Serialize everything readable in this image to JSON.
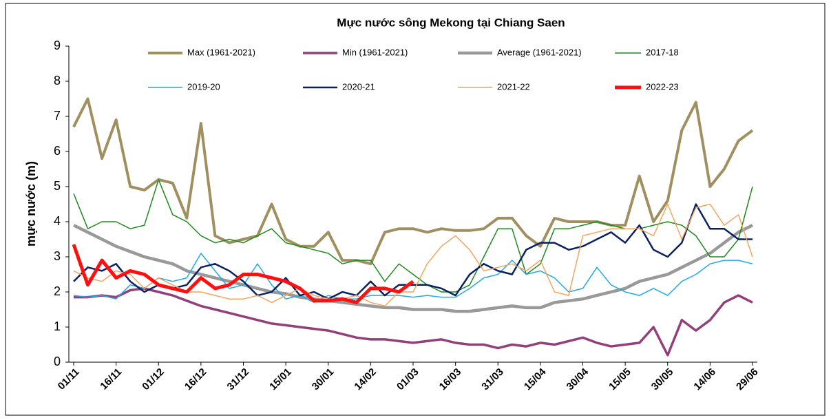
{
  "chart_data": {
    "type": "line",
    "title": "Mực nước sông Mekong tại Chiang Saen",
    "y_label": "mực nước (m)",
    "categories": [
      "01/11",
      null,
      null,
      "16/11",
      null,
      null,
      "01/12",
      null,
      null,
      "16/12",
      null,
      null,
      "31/12",
      null,
      null,
      "15/01",
      null,
      null,
      "30/01",
      null,
      null,
      "14/02",
      null,
      null,
      "01/03",
      null,
      null,
      "16/03",
      null,
      null,
      "31/03",
      null,
      null,
      "15/04",
      null,
      null,
      "30/04",
      null,
      null,
      "15/05",
      null,
      null,
      "30/05",
      null,
      null,
      "14/06",
      null,
      null,
      "29/06"
    ],
    "ylim": [
      0,
      9
    ],
    "yticks": [
      0,
      1,
      2,
      3,
      4,
      5,
      6,
      7,
      8,
      9
    ],
    "series": [
      {
        "name": "Max (1961-2021)",
        "color": "#a09060",
        "values": [
          6.7,
          7.5,
          5.8,
          6.9,
          5.0,
          4.9,
          5.2,
          5.1,
          4.1,
          6.8,
          3.6,
          3.4,
          3.5,
          3.6,
          4.5,
          3.5,
          3.3,
          3.3,
          3.7,
          2.9,
          2.9,
          2.8,
          3.7,
          3.8,
          3.8,
          3.7,
          3.8,
          3.75,
          3.75,
          3.8,
          4.1,
          4.1,
          3.6,
          3.3,
          4.1,
          4.0,
          4.0,
          4.0,
          3.9,
          3.9,
          5.3,
          4.0,
          4.6,
          6.6,
          7.4,
          5.0,
          5.5,
          6.3,
          6.6
        ]
      },
      {
        "name": "Min (1961-2021)",
        "color": "#933f7a",
        "values": [
          1.85,
          1.85,
          1.9,
          1.85,
          2.05,
          2.1,
          2.0,
          1.9,
          1.75,
          1.6,
          1.5,
          1.4,
          1.3,
          1.2,
          1.1,
          1.05,
          1.0,
          0.95,
          0.9,
          0.8,
          0.7,
          0.65,
          0.65,
          0.6,
          0.55,
          0.6,
          0.65,
          0.55,
          0.5,
          0.5,
          0.4,
          0.5,
          0.45,
          0.55,
          0.5,
          0.6,
          0.7,
          0.55,
          0.45,
          0.5,
          0.55,
          1.0,
          0.2,
          1.2,
          0.9,
          1.2,
          1.7,
          1.9,
          1.7
        ]
      },
      {
        "name": "Average (1961-2021)",
        "color": "#999999",
        "values": [
          3.9,
          3.7,
          3.5,
          3.3,
          3.15,
          3.0,
          2.9,
          2.8,
          2.6,
          2.5,
          2.4,
          2.3,
          2.2,
          2.1,
          2.0,
          1.95,
          1.85,
          1.8,
          1.75,
          1.7,
          1.65,
          1.6,
          1.55,
          1.55,
          1.5,
          1.5,
          1.5,
          1.45,
          1.45,
          1.5,
          1.55,
          1.6,
          1.55,
          1.55,
          1.7,
          1.75,
          1.8,
          1.9,
          2.0,
          2.1,
          2.3,
          2.4,
          2.5,
          2.7,
          2.9,
          3.1,
          3.4,
          3.7,
          3.9
        ]
      },
      {
        "name": "2017-18",
        "color": "#1e8a1e",
        "values": [
          4.8,
          3.8,
          4.0,
          4.0,
          3.8,
          3.9,
          5.2,
          4.2,
          4.0,
          3.6,
          3.4,
          3.5,
          3.4,
          3.6,
          3.8,
          3.4,
          3.3,
          3.2,
          3.1,
          2.8,
          2.9,
          2.9,
          2.3,
          2.8,
          2.5,
          2.2,
          2.0,
          2.0,
          2.2,
          3.0,
          3.8,
          3.8,
          2.5,
          2.8,
          3.8,
          3.8,
          3.9,
          4.0,
          3.9,
          3.8,
          3.8,
          3.9,
          4.0,
          3.9,
          3.6,
          3.0,
          3.0,
          3.5,
          5.0
        ]
      },
      {
        "name": "2019-20",
        "color": "#1eaae6",
        "values": [
          1.9,
          1.85,
          1.9,
          1.8,
          2.2,
          2.1,
          2.4,
          2.3,
          2.4,
          3.1,
          2.6,
          2.1,
          2.2,
          2.8,
          2.2,
          1.8,
          1.9,
          1.7,
          1.9,
          1.8,
          1.8,
          1.9,
          1.9,
          1.9,
          1.85,
          1.9,
          1.85,
          1.85,
          2.1,
          2.4,
          2.5,
          2.9,
          2.5,
          2.6,
          2.4,
          2.0,
          2.1,
          2.7,
          2.2,
          2.0,
          1.9,
          2.1,
          1.9,
          2.3,
          2.5,
          2.8,
          2.9,
          2.9,
          2.8
        ]
      },
      {
        "name": "2020-21",
        "color": "#0b2060",
        "values": [
          2.3,
          2.7,
          2.6,
          2.8,
          2.3,
          2.0,
          2.2,
          2.1,
          2.2,
          2.7,
          2.8,
          2.6,
          2.3,
          1.9,
          2.0,
          2.4,
          1.9,
          2.0,
          1.8,
          2.0,
          1.9,
          2.3,
          1.9,
          2.2,
          2.2,
          2.2,
          2.1,
          1.9,
          2.5,
          2.8,
          2.6,
          2.5,
          3.2,
          3.4,
          3.4,
          3.2,
          3.3,
          3.5,
          3.7,
          3.4,
          3.9,
          3.2,
          3.0,
          3.4,
          4.5,
          3.8,
          3.8,
          3.5,
          3.5
        ]
      },
      {
        "name": "2021-22",
        "color": "#f4a460",
        "values": [
          2.6,
          2.4,
          2.3,
          2.6,
          2.5,
          2.1,
          2.4,
          2.2,
          2.0,
          2.0,
          1.9,
          1.8,
          1.8,
          1.9,
          1.7,
          1.9,
          2.1,
          1.9,
          1.8,
          1.8,
          1.9,
          1.7,
          1.6,
          2.0,
          2.0,
          2.8,
          3.3,
          3.6,
          3.2,
          2.6,
          2.7,
          2.8,
          2.6,
          2.9,
          2.0,
          1.9,
          3.6,
          3.7,
          3.8,
          3.8,
          3.8,
          3.6,
          4.5,
          3.5,
          4.4,
          4.5,
          3.9,
          4.2,
          3.0
        ]
      },
      {
        "name": "2022-23",
        "color": "#ff1010",
        "values": [
          3.35,
          2.2,
          2.9,
          2.4,
          2.6,
          2.5,
          2.2,
          2.1,
          2.0,
          2.4,
          2.1,
          2.2,
          2.5,
          2.5,
          2.4,
          2.3,
          2.1,
          1.75,
          1.75,
          1.8,
          1.7,
          2.1,
          2.1,
          2.0,
          2.3,
          null,
          null,
          null,
          null,
          null,
          null,
          null,
          null,
          null,
          null,
          null,
          null,
          null,
          null,
          null,
          null,
          null,
          null,
          null,
          null,
          null,
          null,
          null,
          null
        ]
      }
    ]
  }
}
